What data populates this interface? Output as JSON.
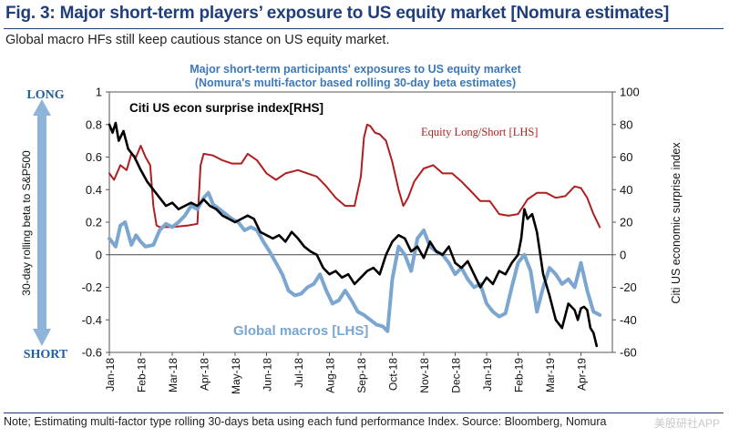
{
  "header": {
    "title": "Fig. 3: Major short-term players’ exposure to US equity market [Nomura estimates]",
    "subtitle": "Global macro HFs still keep cautious stance on US equity market."
  },
  "footer": {
    "note": "Note; Estimating multi-factor type rolling 30-days beta using each fund performance Index. Source: Bloomberg, Nomura",
    "watermark": "美股研社APP"
  },
  "colors": {
    "equity": "#b01e1e",
    "macro": "#7ba6cf",
    "citi": "#000000",
    "arrow": "#8fb4d9",
    "axis_label_blue": "#1f5fa0"
  },
  "chart_data": {
    "type": "line",
    "title": "Major short-term participants' exposures to US equity market",
    "subtitle": "(Nomura's multi-factor based rolling 30-day beta estimates)",
    "ylabel_left": "30-day rolling beta to S&P500",
    "ylabel_right": "Citi US economic surprise index",
    "long_label": "LONG",
    "short_label": "SHORT",
    "ylim_left": [
      -0.6,
      1
    ],
    "ylim_right": [
      -60,
      100
    ],
    "yticks_left": [
      "1",
      "0.8",
      "0.6",
      "0.4",
      "0.2",
      "0",
      "-0.2",
      "-0.4",
      "-0.6"
    ],
    "yticks_right": [
      "100",
      "80",
      "60",
      "40",
      "20",
      "0",
      "-20",
      "-40",
      "-60"
    ],
    "xlim": [
      0,
      16
    ],
    "x_ticks": [
      "Jan-18",
      "Feb-18",
      "Mar-18",
      "Apr-18",
      "May-18",
      "Jun-18",
      "Jul-18",
      "Aug-18",
      "Sep-18",
      "Oct-18",
      "Nov-18",
      "Dec-18",
      "Jan-19",
      "Feb-19",
      "Mar-19",
      "Apr-19"
    ],
    "series": [
      {
        "name": "Equity Long/Short [LHS]",
        "axis": "left",
        "x": [
          0,
          0.15,
          0.35,
          0.55,
          0.7,
          0.85,
          1.0,
          1.15,
          1.3,
          1.4,
          1.5,
          1.6,
          2.0,
          2.5,
          2.8,
          2.9,
          3.0,
          3.3,
          3.6,
          3.9,
          4.2,
          4.4,
          4.7,
          5.0,
          5.3,
          5.6,
          6.0,
          6.3,
          6.6,
          6.9,
          7.2,
          7.5,
          7.8,
          8.0,
          8.1,
          8.2,
          8.3,
          8.45,
          8.6,
          8.8,
          9.0,
          9.2,
          9.35,
          9.5,
          9.7,
          10.0,
          10.3,
          10.6,
          10.9,
          11.2,
          11.5,
          11.8,
          12.1,
          12.4,
          12.7,
          13.0,
          13.3,
          13.6,
          13.9,
          14.2,
          14.5,
          14.8,
          15.0,
          15.2,
          15.4,
          15.6
        ],
        "values": [
          0.5,
          0.46,
          0.55,
          0.52,
          0.62,
          0.6,
          0.67,
          0.6,
          0.55,
          0.3,
          0.18,
          0.17,
          0.17,
          0.18,
          0.19,
          0.55,
          0.62,
          0.61,
          0.58,
          0.56,
          0.56,
          0.62,
          0.58,
          0.5,
          0.46,
          0.5,
          0.52,
          0.5,
          0.48,
          0.42,
          0.35,
          0.3,
          0.3,
          0.48,
          0.72,
          0.8,
          0.79,
          0.75,
          0.74,
          0.7,
          0.57,
          0.4,
          0.3,
          0.35,
          0.45,
          0.53,
          0.55,
          0.5,
          0.5,
          0.45,
          0.39,
          0.33,
          0.33,
          0.25,
          0.24,
          0.25,
          0.34,
          0.38,
          0.38,
          0.35,
          0.36,
          0.42,
          0.41,
          0.35,
          0.25,
          0.17
        ],
        "color": "#b01e1e"
      },
      {
        "name": "Global macros [LHS]",
        "axis": "left",
        "x": [
          0,
          0.2,
          0.35,
          0.5,
          0.7,
          0.85,
          1.0,
          1.15,
          1.4,
          1.6,
          1.8,
          2.0,
          2.2,
          2.4,
          2.6,
          2.8,
          3.0,
          3.15,
          3.3,
          3.5,
          3.7,
          3.9,
          4.1,
          4.3,
          4.5,
          4.7,
          4.9,
          5.1,
          5.3,
          5.5,
          5.7,
          5.9,
          6.1,
          6.3,
          6.5,
          6.7,
          6.9,
          7.1,
          7.3,
          7.5,
          7.7,
          7.9,
          8.1,
          8.3,
          8.5,
          8.7,
          8.85,
          9.0,
          9.2,
          9.4,
          9.6,
          9.8,
          10.0,
          10.2,
          10.4,
          10.6,
          10.8,
          11.0,
          11.2,
          11.4,
          11.6,
          11.8,
          12.0,
          12.2,
          12.4,
          12.6,
          12.8,
          13.0,
          13.2,
          13.4,
          13.6,
          13.8,
          14.0,
          14.2,
          14.4,
          14.6,
          14.8,
          15.0,
          15.2,
          15.4,
          15.6
        ],
        "values": [
          0.1,
          0.05,
          0.18,
          0.2,
          0.06,
          0.12,
          0.08,
          0.05,
          0.06,
          0.15,
          0.19,
          0.17,
          0.2,
          0.24,
          0.3,
          0.28,
          0.35,
          0.38,
          0.31,
          0.28,
          0.25,
          0.22,
          0.2,
          0.15,
          0.17,
          0.15,
          0.08,
          0.02,
          -0.05,
          -0.12,
          -0.22,
          -0.25,
          -0.24,
          -0.2,
          -0.18,
          -0.12,
          -0.22,
          -0.3,
          -0.28,
          -0.22,
          -0.28,
          -0.35,
          -0.37,
          -0.4,
          -0.43,
          -0.44,
          -0.47,
          -0.15,
          0.05,
          0.0,
          -0.1,
          0.1,
          0.15,
          0.05,
          0.02,
          0.0,
          -0.05,
          -0.12,
          -0.08,
          -0.15,
          -0.2,
          -0.18,
          -0.3,
          -0.35,
          -0.38,
          -0.36,
          -0.2,
          -0.05,
          0.0,
          -0.1,
          -0.35,
          -0.2,
          -0.08,
          -0.12,
          -0.18,
          -0.15,
          -0.2,
          -0.05,
          -0.22,
          -0.35,
          -0.37
        ],
        "color": "#7ba6cf"
      },
      {
        "name": "Citi US econ surprise index[RHS]",
        "axis": "right",
        "x": [
          0,
          0.1,
          0.2,
          0.3,
          0.45,
          0.6,
          0.8,
          1.0,
          1.2,
          1.4,
          1.6,
          1.8,
          2.0,
          2.2,
          2.4,
          2.6,
          2.8,
          3.0,
          3.2,
          3.4,
          3.6,
          3.8,
          4.0,
          4.2,
          4.4,
          4.6,
          4.8,
          5.0,
          5.2,
          5.4,
          5.6,
          5.8,
          6.0,
          6.2,
          6.4,
          6.6,
          6.8,
          7.0,
          7.2,
          7.4,
          7.6,
          7.8,
          8.0,
          8.2,
          8.4,
          8.6,
          8.8,
          9.0,
          9.2,
          9.4,
          9.6,
          9.8,
          10.0,
          10.2,
          10.4,
          10.6,
          10.8,
          11.0,
          11.2,
          11.4,
          11.6,
          11.8,
          12.0,
          12.2,
          12.4,
          12.6,
          12.8,
          13.0,
          13.1,
          13.2,
          13.3,
          13.45,
          13.6,
          13.8,
          14.0,
          14.2,
          14.4,
          14.6,
          14.8,
          14.9,
          15.0,
          15.1,
          15.2,
          15.3,
          15.4,
          15.5
        ],
        "values": [
          80,
          75,
          81,
          70,
          76,
          65,
          60,
          52,
          45,
          40,
          35,
          30,
          32,
          28,
          30,
          32,
          30,
          34,
          30,
          28,
          24,
          22,
          20,
          22,
          24,
          22,
          14,
          12,
          10,
          12,
          8,
          14,
          10,
          5,
          2,
          0,
          -8,
          -12,
          -10,
          -14,
          -12,
          -18,
          -14,
          -10,
          -8,
          -12,
          0,
          8,
          12,
          10,
          2,
          5,
          -2,
          8,
          2,
          0,
          5,
          -5,
          -8,
          -4,
          -12,
          -20,
          -14,
          -18,
          -10,
          -12,
          -5,
          0,
          10,
          28,
          22,
          25,
          14,
          -12,
          -25,
          -40,
          -45,
          -30,
          -34,
          -40,
          -33,
          -32,
          -34,
          -45,
          -48,
          -56
        ],
        "color": "#000000"
      }
    ],
    "annotations": {
      "citi_label": "Citi US econ surprise index[RHS]",
      "equity_label": "Equity Long/Short  [LHS]",
      "macro_label": "Global macros [LHS]"
    }
  }
}
